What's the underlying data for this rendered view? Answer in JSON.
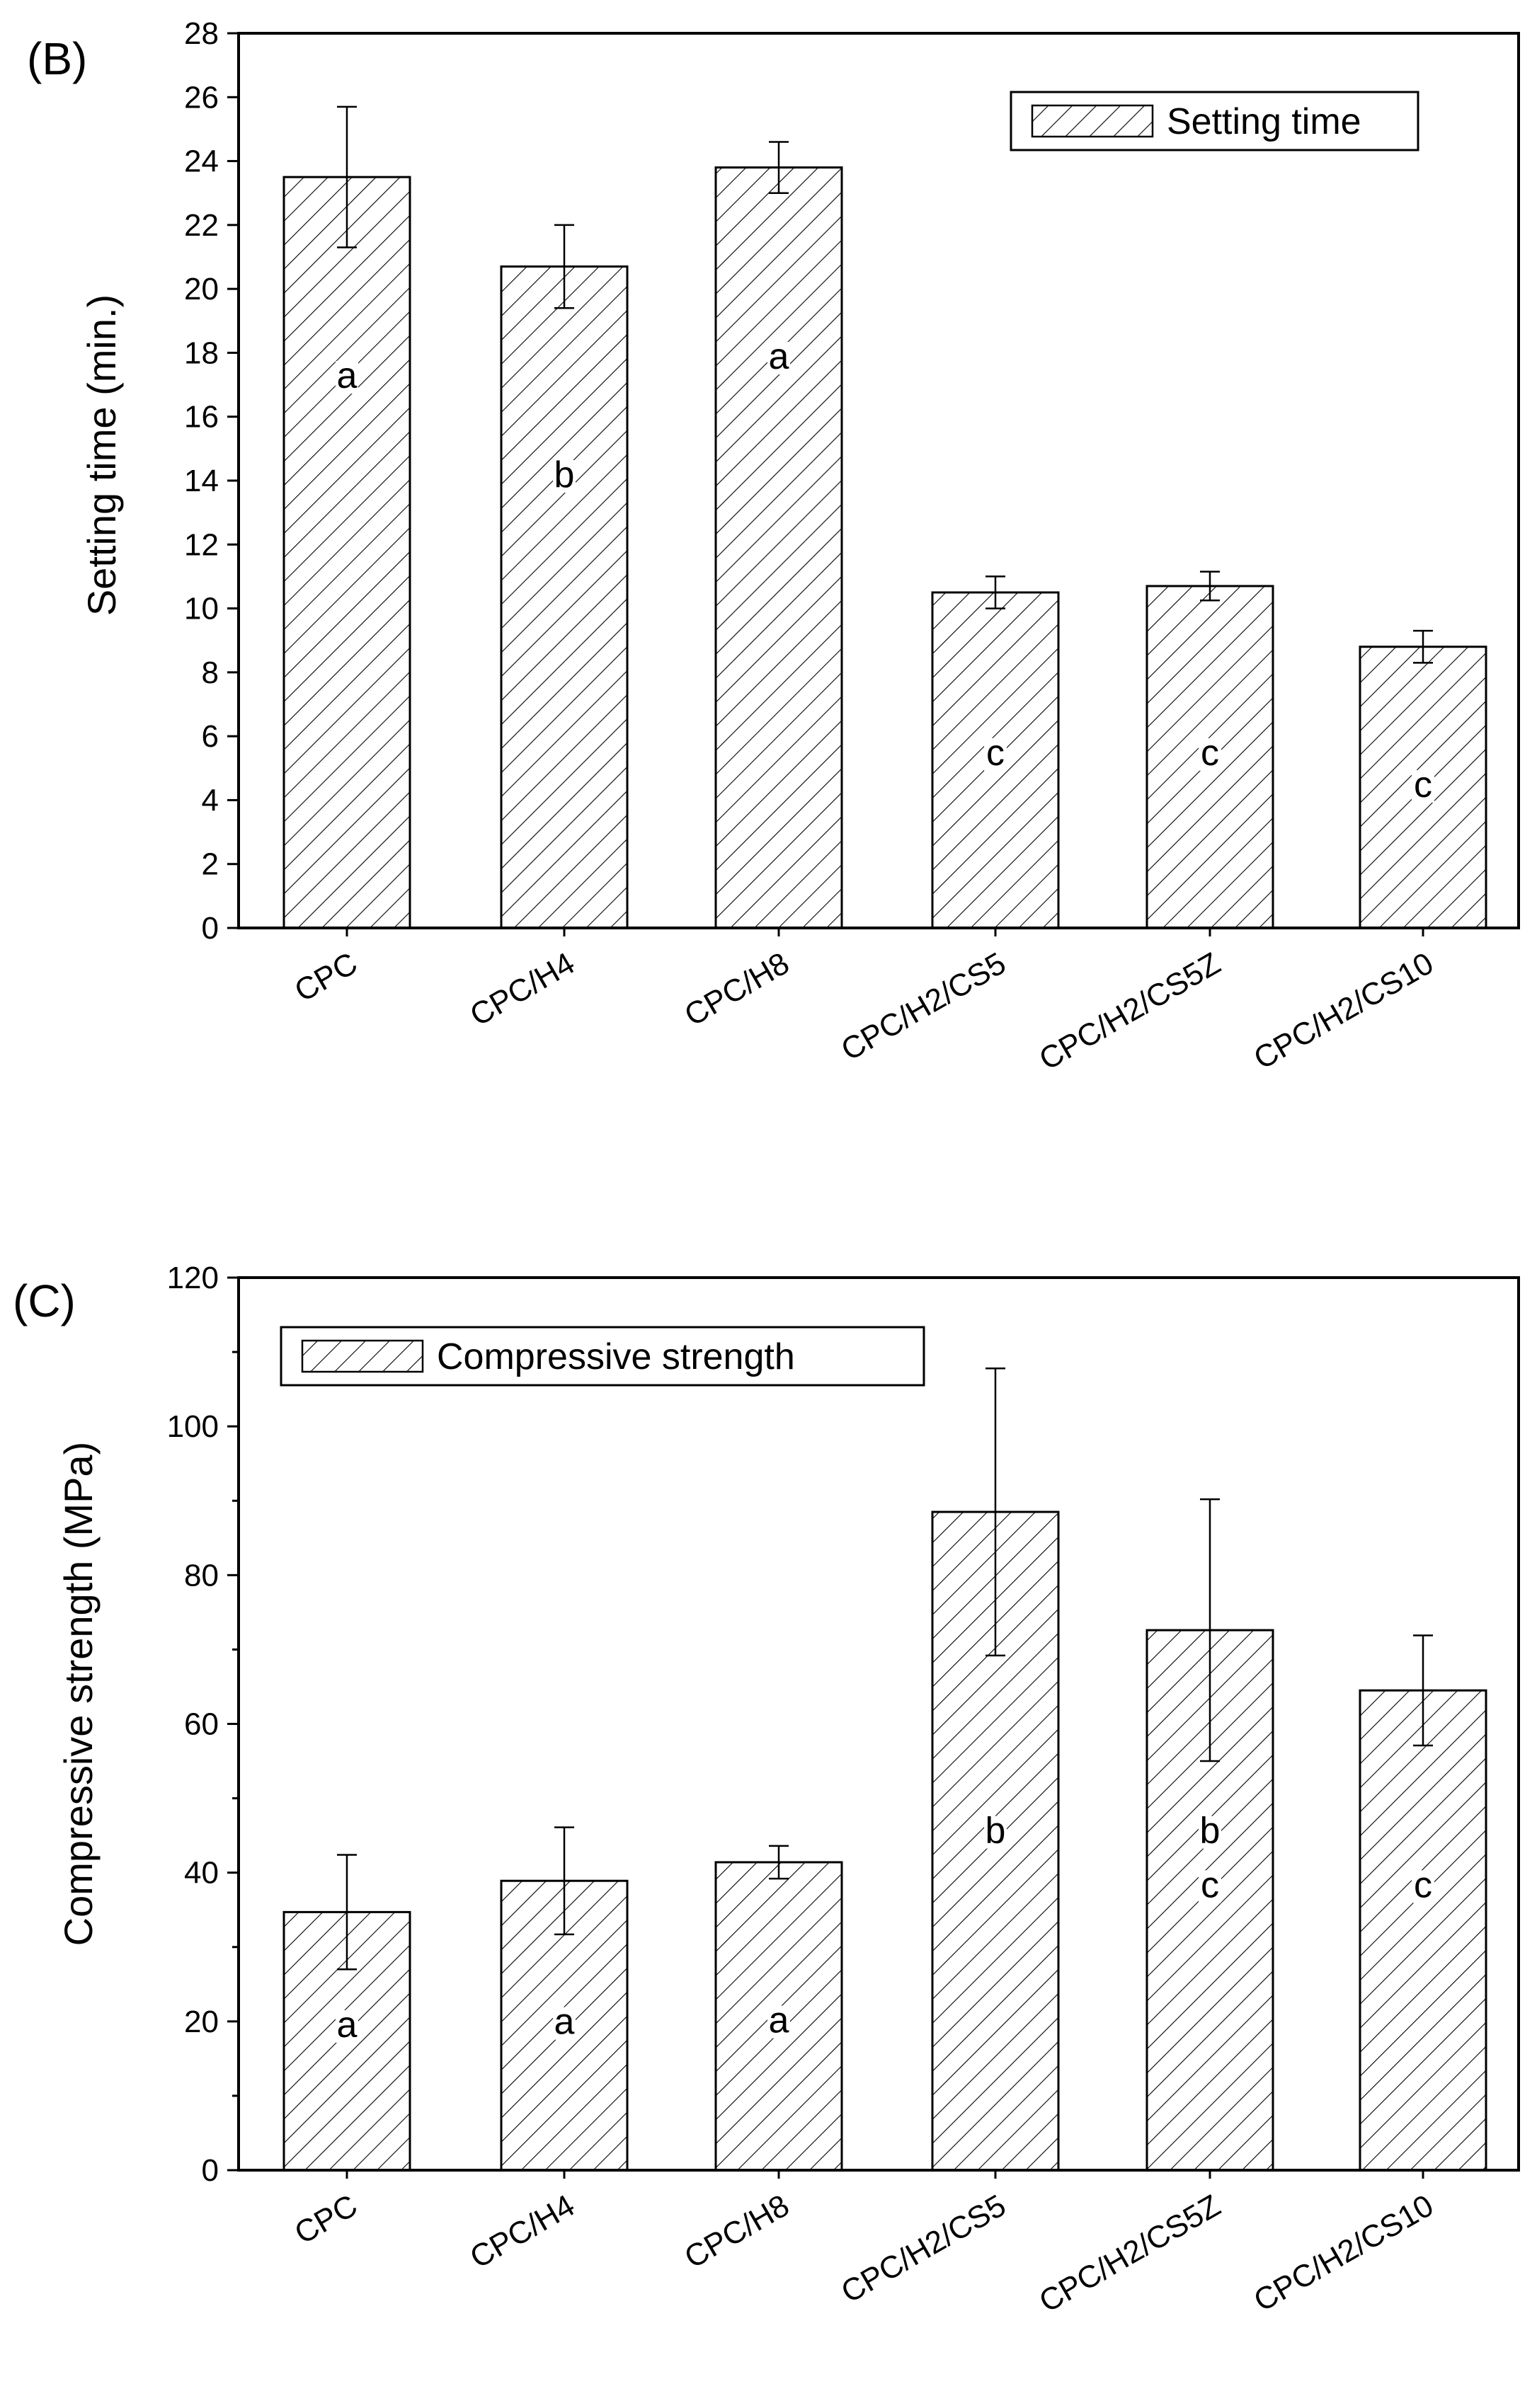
{
  "chart_data": [
    {
      "type": "bar",
      "panel_label": "(B)",
      "title": "",
      "xlabel": "",
      "ylabel": "Setting time (min.)",
      "ylim": [
        0,
        28
      ],
      "yticks": [
        0,
        2,
        4,
        6,
        8,
        10,
        12,
        14,
        16,
        18,
        20,
        22,
        24,
        26,
        28
      ],
      "categories": [
        "CPC",
        "CPC/H4",
        "CPC/H8",
        "CPC/H2/CS5",
        "CPC/H2/CS5Z",
        "CPC/H2/CS10"
      ],
      "series": [
        {
          "name": "Setting time",
          "values": [
            23.5,
            20.7,
            23.8,
            10.5,
            10.7,
            8.8
          ],
          "errors": [
            2.2,
            1.3,
            0.8,
            0.5,
            0.45,
            0.5
          ],
          "significance": [
            "a",
            "b",
            "a",
            "c",
            "c",
            "c"
          ],
          "significance_at": [
            16.9,
            13.8,
            17.5,
            5.1,
            5.1,
            4.1
          ]
        }
      ],
      "legend": {
        "position": "top-right",
        "entries": [
          "Setting time"
        ]
      }
    },
    {
      "type": "bar",
      "panel_label": "(C)",
      "title": "",
      "xlabel": "",
      "ylabel": "Compressive strength (MPa)",
      "ylim": [
        0,
        120
      ],
      "yticks": [
        0,
        20,
        40,
        60,
        80,
        100,
        120
      ],
      "categories": [
        "CPC",
        "CPC/H4",
        "CPC/H8",
        "CPC/H2/CS5",
        "CPC/H2/CS5Z",
        "CPC/H2/CS10"
      ],
      "series": [
        {
          "name": "Compressive strength",
          "values": [
            34.7,
            38.9,
            41.4,
            88.5,
            72.6,
            64.5
          ],
          "errors": [
            7.7,
            7.2,
            2.2,
            19.3,
            17.6,
            7.4
          ],
          "significance": [
            "a",
            "a",
            "a",
            "b",
            "b c",
            "c"
          ],
          "significance_at": [
            [
              17.9
            ],
            [
              18.3
            ],
            [
              18.5
            ],
            [
              44.0
            ],
            [
              44.0,
              36.7
            ],
            [
              36.7
            ]
          ]
        }
      ],
      "legend": {
        "position": "top-left",
        "entries": [
          "Compressive strength"
        ]
      }
    }
  ]
}
